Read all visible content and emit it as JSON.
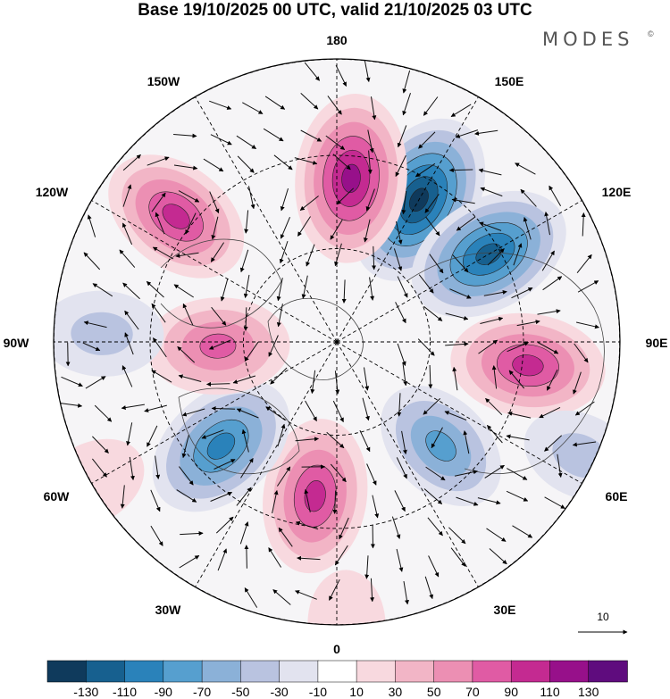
{
  "title": "Base 19/10/2025 00 UTC, valid 21/10/2025 03 UTC",
  "brand": "MODES",
  "brand_mark": "©",
  "longitude_labels": {
    "n": "180",
    "nne": "150E",
    "ne": "120E",
    "e": "90E",
    "se": "60E",
    "sse": "30E",
    "s": "0",
    "ssw": "30W",
    "sw": "60W",
    "w": "90W",
    "nw": "120W",
    "nnw": "150W"
  },
  "vector_reference": {
    "value": "10"
  },
  "colorbar": {
    "colors": [
      "#0f3a5c",
      "#17608f",
      "#2a82ba",
      "#569fcf",
      "#8bb1d8",
      "#b9c3e0",
      "#e2e3ef",
      "#ffffff",
      "#f8d9df",
      "#f2b5c6",
      "#ec8fb3",
      "#e05ba4",
      "#c42a91",
      "#97108a",
      "#5f0c7e"
    ],
    "labels": [
      "-130",
      "-110",
      "-90",
      "-70",
      "-50",
      "-30",
      "-10",
      "10",
      "30",
      "50",
      "70",
      "90",
      "110",
      "130"
    ]
  },
  "anomalies": [
    {
      "lon": 150,
      "r": 0.58,
      "value": -135
    },
    {
      "lon": 175,
      "r": 0.58,
      "value": 125
    },
    {
      "lon": 120,
      "r": 0.62,
      "value": -120
    },
    {
      "lon": 83,
      "r": 0.68,
      "value": 100
    },
    {
      "lon": 45,
      "r": 0.52,
      "value": -75
    },
    {
      "lon": 65,
      "r": 0.95,
      "value": -35
    },
    {
      "lon": -8,
      "r": 0.55,
      "value": 100
    },
    {
      "lon": -48,
      "r": 0.55,
      "value": -105
    },
    {
      "lon": -88,
      "r": 0.42,
      "value": 80
    },
    {
      "lon": -92,
      "r": 0.83,
      "value": -45
    },
    {
      "lon": -128,
      "r": 0.72,
      "value": 95
    },
    {
      "lon": -60,
      "r": 1.0,
      "value": 25
    },
    {
      "lon": 2,
      "r": 1.0,
      "value": 20
    }
  ],
  "icons": {
    "map": "polar-stereographic-map",
    "arrows": "wind-vector-arrows"
  }
}
